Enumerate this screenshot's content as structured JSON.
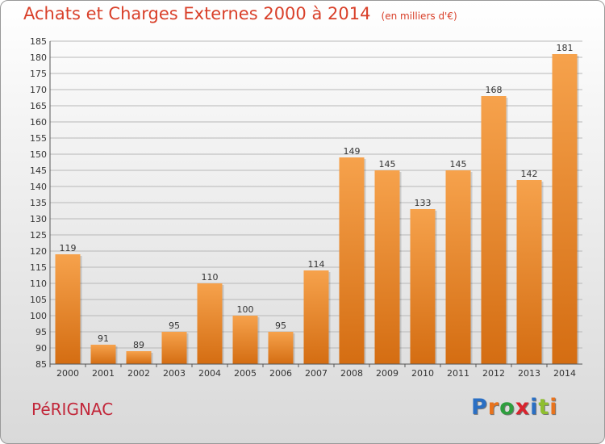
{
  "header": {
    "title": "Achats et Charges Externes 2000 à 2014",
    "subtitle": "(en milliers d'€)"
  },
  "footer": {
    "commune": "PéRIGNAC",
    "brand": "Proxiti",
    "brand_letters": [
      {
        "char": "P",
        "color": "#2a6fc4"
      },
      {
        "char": "r",
        "color": "#e8731d"
      },
      {
        "char": "o",
        "color": "#2e9e3e"
      },
      {
        "char": "x",
        "color": "#d8242e"
      },
      {
        "char": "i",
        "color": "#2a6fc4"
      },
      {
        "char": "t",
        "color": "#8fbf2e"
      },
      {
        "char": "i",
        "color": "#e8731d"
      }
    ]
  },
  "colors": {
    "accent": "#d9402a",
    "bar_light": "#f6a24c",
    "bar_dark": "#d46d12"
  },
  "chart_data": {
    "type": "bar",
    "categories": [
      "2000",
      "2001",
      "2002",
      "2003",
      "2004",
      "2005",
      "2006",
      "2007",
      "2008",
      "2009",
      "2010",
      "2011",
      "2012",
      "2013",
      "2014"
    ],
    "values": [
      119,
      91,
      89,
      95,
      110,
      100,
      95,
      114,
      149,
      145,
      133,
      145,
      168,
      142,
      181
    ],
    "ylim": [
      85,
      185
    ],
    "yticks": [
      85,
      90,
      95,
      100,
      105,
      110,
      115,
      120,
      125,
      130,
      135,
      140,
      145,
      150,
      155,
      160,
      165,
      170,
      175,
      180,
      185
    ],
    "grid": true,
    "xlabel": "",
    "ylabel": ""
  }
}
